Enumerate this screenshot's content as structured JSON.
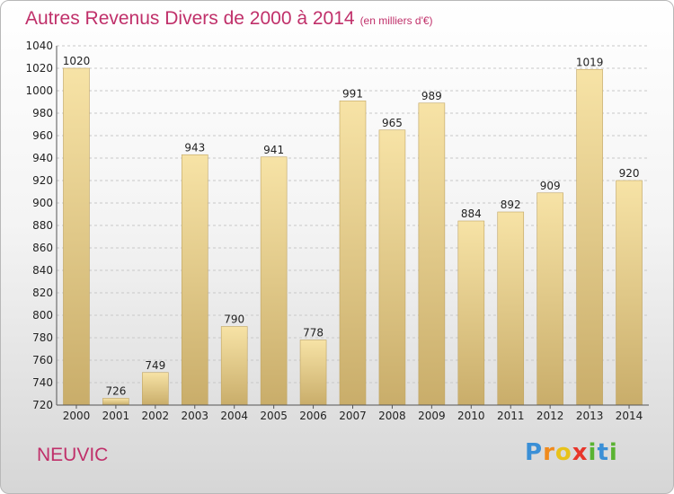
{
  "title": "Autres Revenus Divers de 2000 à 2014",
  "subtitle": "(en milliers d'€)",
  "place": "NEUVIC",
  "logo": {
    "letters": [
      "P",
      "r",
      "o",
      "x",
      "i",
      "t",
      "i"
    ],
    "colors": [
      "#3a8fd6",
      "#f08a1c",
      "#e8c21a",
      "#e8352a",
      "#5ab332",
      "#3a8fd6",
      "#5ab332"
    ]
  },
  "colors": {
    "title": "#c0306a",
    "bar_light": "#f7e3a6",
    "bar_dark": "#c9ad6a",
    "bar_edge": "#bfa463"
  },
  "chart_data": {
    "type": "bar",
    "categories": [
      "2000",
      "2001",
      "2002",
      "2003",
      "2004",
      "2005",
      "2006",
      "2007",
      "2008",
      "2009",
      "2010",
      "2011",
      "2012",
      "2013",
      "2014"
    ],
    "values": [
      1020,
      726,
      749,
      943,
      790,
      941,
      778,
      991,
      965,
      989,
      884,
      892,
      909,
      1019,
      920
    ],
    "ylim": [
      720,
      1040
    ],
    "yticks": [
      720,
      740,
      760,
      780,
      800,
      820,
      840,
      860,
      880,
      900,
      920,
      940,
      960,
      980,
      1000,
      1020,
      1040
    ],
    "grid": "horizontal-dashed",
    "legend": "none"
  }
}
